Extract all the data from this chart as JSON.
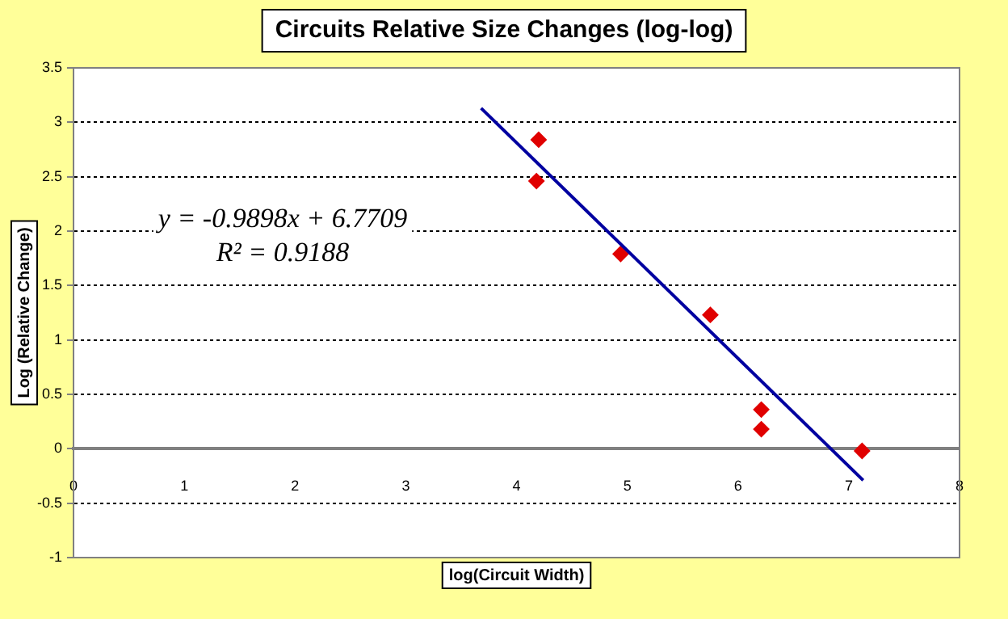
{
  "chart_data": {
    "type": "scatter",
    "title": "Circuits Relative Size Changes (log-log)",
    "xlabel": "log(Circuit Width)",
    "ylabel": "Log (Relative Change)",
    "xlim": [
      0,
      8
    ],
    "xticks": [
      0,
      1,
      2,
      3,
      4,
      5,
      6,
      7,
      8
    ],
    "ylim": [
      -1,
      3.5
    ],
    "yticks": [
      -1,
      -0.5,
      0,
      0.5,
      1,
      1.5,
      2,
      2.5,
      3,
      3.5
    ],
    "grid": "y",
    "legend": false,
    "marker": "diamond",
    "series": [
      {
        "type": "scatter",
        "color": "#e00000",
        "x": [
          4.2,
          4.18,
          4.94,
          5.75,
          6.21,
          6.21,
          7.12
        ],
        "values": [
          2.84,
          2.46,
          1.79,
          1.23,
          0.36,
          0.18,
          -0.02
        ]
      },
      {
        "type": "line",
        "color": "#0000a0",
        "x": [
          3.68,
          7.13
        ],
        "values": [
          3.13,
          -0.29
        ],
        "line_style": "solid",
        "marker": "none"
      }
    ],
    "annotations": [
      "y = -0.9898x + 6.7709",
      "R² = 0.9188"
    ]
  }
}
